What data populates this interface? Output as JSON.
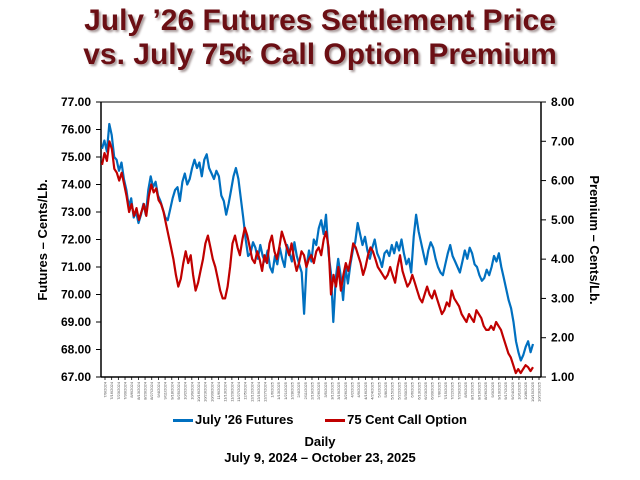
{
  "chart_data": {
    "type": "line",
    "title_line1": "July ’26 Futures Settlement Price",
    "title_line2": "vs. July 75¢ Call Option Premium",
    "xlabel": "Daily",
    "date_range": "July 9, 2024 – October 23, 2025",
    "ylabel_left": "Futures – Cents/Lb.",
    "ylabel_right": "Premium – Cents/Lb.",
    "ylim_left": [
      67,
      77
    ],
    "ylim_right": [
      1,
      8
    ],
    "yticks_left": [
      "77.00",
      "76.00",
      "75.00",
      "74.00",
      "73.00",
      "72.00",
      "71.00",
      "70.00",
      "69.00",
      "68.00",
      "67.00"
    ],
    "yticks_right": [
      "8.00",
      "7.00",
      "6.00",
      "5.00",
      "4.00",
      "3.00",
      "2.00",
      "1.00"
    ],
    "x_start": "7/9/2024",
    "x_end": "10/23/2025",
    "xtick_labels": [
      "7/9/2024",
      "7/16/2024",
      "7/23/2024",
      "7/30/2024",
      "8/6/2024",
      "8/13/2024",
      "8/20/2024",
      "8/27/2024",
      "9/4/2024",
      "9/11/2024",
      "9/18/2024",
      "9/25/2024",
      "10/2/2024",
      "10/9/2024",
      "10/16/2024",
      "10/23/2024",
      "10/30/2024",
      "11/6/2024",
      "11/13/2024",
      "11/20/2024",
      "11/27/2024",
      "12/5/2024",
      "12/12/2024",
      "12/19/2024",
      "12/27/2024",
      "1/6/2025",
      "1/13/2025",
      "1/21/2025",
      "1/28/2025",
      "2/4/2025",
      "2/11/2025",
      "2/19/2025",
      "2/26/2025",
      "3/5/2025",
      "3/12/2025",
      "3/19/2025",
      "3/26/2025",
      "4/2/2025",
      "4/9/2025",
      "4/16/2025",
      "4/24/2025",
      "5/1/2025",
      "5/8/2025",
      "5/15/2025",
      "5/22/2025",
      "5/30/2025",
      "6/6/2025",
      "6/13/2025",
      "6/23/2025",
      "6/30/2025",
      "7/8/2025",
      "7/15/2025",
      "7/22/2025",
      "7/29/2025",
      "8/5/2025",
      "8/12/2025",
      "8/19/2025",
      "8/26/2025",
      "9/3/2025",
      "9/10/2025",
      "9/17/2025",
      "9/24/2025",
      "10/1/2025",
      "10/8/2025",
      "10/15/2025",
      "10/23/2025"
    ],
    "grid": false,
    "legend_position": "bottom",
    "series": [
      {
        "name": "July '26 Futures",
        "axis": "left",
        "color": "#0070c0",
        "values": [
          75.3,
          75.6,
          75.2,
          76.2,
          75.8,
          75.0,
          74.9,
          74.5,
          74.8,
          74.2,
          73.8,
          73.2,
          73.5,
          72.8,
          73.0,
          72.6,
          72.9,
          73.3,
          72.9,
          73.8,
          74.3,
          73.9,
          74.1,
          73.6,
          73.4,
          73.1,
          72.8,
          72.7,
          73.1,
          73.5,
          73.8,
          73.9,
          73.4,
          74.1,
          74.4,
          74.0,
          74.2,
          74.6,
          74.9,
          74.6,
          74.8,
          74.3,
          74.9,
          75.1,
          74.6,
          74.4,
          74.2,
          74.5,
          74.3,
          73.6,
          73.4,
          72.9,
          73.3,
          73.8,
          74.3,
          74.6,
          74.2,
          73.5,
          72.8,
          72.0,
          71.4,
          71.5,
          71.9,
          71.7,
          71.3,
          71.8,
          71.4,
          71.2,
          71.6,
          71.0,
          70.8,
          71.4,
          71.1,
          71.7,
          71.3,
          71.0,
          71.8,
          71.5,
          71.2,
          71.9,
          71.4,
          71.1,
          70.8,
          69.3,
          71.0,
          71.6,
          71.2,
          72.0,
          71.8,
          72.4,
          72.7,
          72.2,
          72.9,
          71.5,
          70.8,
          69.0,
          70.6,
          71.3,
          70.7,
          69.8,
          71.0,
          70.4,
          71.1,
          71.6,
          71.9,
          72.6,
          72.2,
          71.8,
          72.1,
          71.6,
          71.3,
          71.7,
          72.0,
          71.5,
          71.3,
          71.0,
          71.5,
          71.6,
          71.4,
          71.8,
          71.5,
          71.9,
          71.6,
          72.0,
          71.5,
          71.1,
          71.3,
          70.8,
          72.1,
          72.9,
          72.3,
          71.9,
          71.5,
          71.1,
          71.6,
          71.9,
          71.7,
          71.3,
          71.0,
          70.8,
          70.7,
          71.1,
          71.5,
          71.8,
          71.4,
          71.2,
          71.0,
          70.8,
          71.2,
          71.6,
          71.3,
          71.7,
          71.5,
          71.1,
          71.0,
          70.7,
          70.5,
          70.6,
          70.9,
          70.7,
          71.0,
          71.4,
          71.2,
          71.5,
          71.0,
          70.6,
          70.2,
          69.8,
          69.5,
          69.0,
          68.3,
          67.9,
          67.6,
          67.8,
          68.1,
          68.3,
          67.9,
          68.2
        ]
      },
      {
        "name": "75 Cent Call Option",
        "axis": "right",
        "color": "#c00000",
        "values": [
          6.4,
          6.7,
          6.5,
          7.0,
          6.8,
          6.3,
          6.2,
          6.0,
          6.2,
          5.9,
          5.6,
          5.2,
          5.4,
          5.1,
          5.3,
          5.0,
          5.2,
          5.4,
          5.1,
          5.6,
          5.9,
          5.7,
          5.8,
          5.5,
          5.4,
          5.2,
          4.9,
          4.6,
          4.3,
          4.0,
          3.6,
          3.3,
          3.5,
          3.9,
          4.2,
          3.9,
          4.1,
          3.6,
          3.2,
          3.4,
          3.7,
          4.0,
          4.4,
          4.6,
          4.3,
          4.0,
          3.8,
          3.5,
          3.2,
          3.0,
          3.0,
          3.3,
          3.8,
          4.4,
          4.6,
          4.3,
          4.1,
          4.5,
          4.8,
          4.6,
          4.3,
          4.0,
          3.9,
          4.2,
          4.0,
          3.7,
          4.1,
          3.9,
          4.4,
          4.6,
          4.2,
          4.0,
          4.3,
          4.7,
          4.5,
          4.3,
          4.1,
          4.4,
          4.0,
          3.7,
          3.9,
          4.2,
          4.1,
          3.8,
          4.0,
          4.1,
          3.9,
          4.2,
          4.3,
          4.1,
          4.5,
          4.7,
          4.3,
          3.1,
          3.6,
          3.3,
          3.8,
          3.2,
          3.6,
          3.9,
          3.7,
          4.0,
          4.4,
          4.3,
          4.1,
          3.9,
          3.6,
          3.8,
          4.1,
          4.3,
          4.2,
          4.0,
          3.8,
          3.7,
          3.6,
          3.5,
          3.6,
          3.8,
          3.6,
          3.4,
          3.8,
          4.1,
          3.7,
          3.5,
          3.3,
          3.4,
          3.6,
          3.4,
          3.2,
          3.0,
          2.9,
          3.1,
          3.3,
          3.1,
          3.0,
          3.2,
          3.0,
          2.8,
          2.6,
          2.7,
          2.9,
          2.8,
          3.2,
          3.0,
          2.9,
          2.8,
          2.6,
          2.5,
          2.4,
          2.6,
          2.5,
          2.4,
          2.7,
          2.6,
          2.5,
          2.3,
          2.2,
          2.2,
          2.3,
          2.2,
          2.4,
          2.3,
          2.2,
          2.0,
          1.8,
          1.6,
          1.5,
          1.3,
          1.1,
          1.2,
          1.1,
          1.2,
          1.3,
          1.25,
          1.15,
          1.25
        ]
      }
    ]
  }
}
